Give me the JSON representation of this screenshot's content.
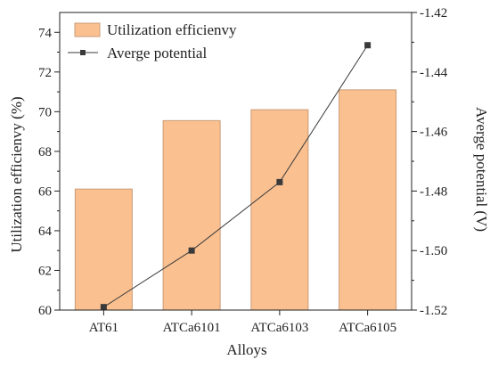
{
  "chart_data": {
    "type": "bar+line",
    "categories": [
      "AT61",
      "ATCa6101",
      "ATCa6103",
      "ATCa6105"
    ],
    "series": [
      {
        "name": "Utilization efficienvy",
        "type": "bar",
        "axis": "left",
        "values": [
          66.1,
          69.55,
          70.1,
          71.1
        ],
        "color": "#FAC090",
        "edge_color": "#C99B78"
      },
      {
        "name": "Averge potential",
        "type": "line",
        "axis": "right",
        "values": [
          -1.519,
          -1.5,
          -1.477,
          -1.431
        ],
        "color": "#3a3a3a",
        "marker": "square"
      }
    ],
    "xlabel": "Alloys",
    "ylabel_left": "Utilization efficienvy (%)",
    "ylabel_right": "Averge potential (V)",
    "ylim_left": [
      60,
      75
    ],
    "ylim_right": [
      -1.52,
      -1.42
    ],
    "yticks_left": [
      "60",
      "62",
      "64",
      "66",
      "68",
      "70",
      "72",
      "74"
    ],
    "yticks_right": [
      "-1.52",
      "-1.50",
      "-1.48",
      "-1.46",
      "-1.44",
      "-1.42"
    ],
    "legend_position": "top-left",
    "grid": false
  }
}
